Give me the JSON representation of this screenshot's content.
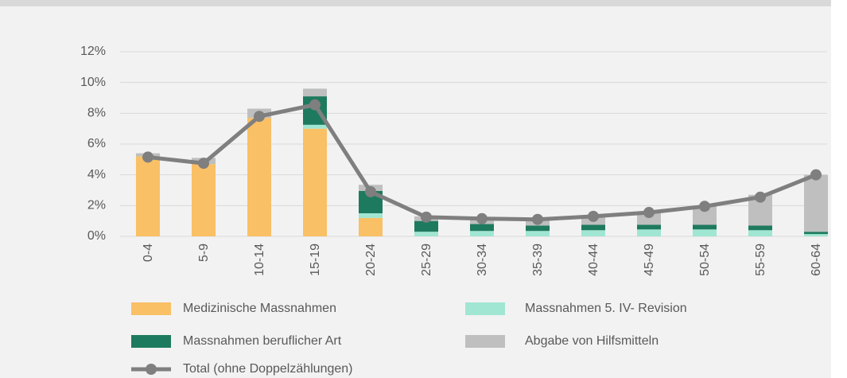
{
  "chart_data": {
    "type": "bar",
    "stacked": true,
    "categories": [
      "0-4",
      "5-9",
      "10-14",
      "15-19",
      "20-24",
      "25-29",
      "30-34",
      "35-39",
      "40-44",
      "45-49",
      "50-54",
      "55-59",
      "60-64"
    ],
    "series": [
      {
        "name": "Medizinische Massnahmen",
        "color": "#f9c066",
        "values": [
          5.2,
          4.7,
          7.7,
          7.0,
          1.2,
          0,
          0,
          0,
          0,
          0,
          0,
          0,
          0
        ]
      },
      {
        "name": "Massnahmen 5. IV- Revision",
        "color": "#a0e6d2",
        "values": [
          0,
          0,
          0,
          0.25,
          0.3,
          0.3,
          0.35,
          0.35,
          0.4,
          0.45,
          0.45,
          0.4,
          0.15
        ]
      },
      {
        "name": "Massnahmen beruflicher Art",
        "color": "#1e7a5e",
        "values": [
          0,
          0,
          0,
          1.85,
          1.45,
          0.7,
          0.45,
          0.35,
          0.35,
          0.3,
          0.3,
          0.3,
          0.15
        ]
      },
      {
        "name": "Abgabe von Hilfsmitteln",
        "color": "#bfbfbf",
        "values": [
          0.2,
          0.4,
          0.6,
          0.5,
          0.4,
          0.3,
          0.3,
          0.4,
          0.5,
          0.8,
          1.2,
          2.0,
          3.7
        ]
      },
      {
        "name": "Total (ohne Doppelzählungen)",
        "color": "#7f7f7f",
        "type": "line",
        "values": [
          5.15,
          4.75,
          7.8,
          8.55,
          2.9,
          1.25,
          1.15,
          1.1,
          1.3,
          1.55,
          1.95,
          2.55,
          4.0
        ]
      }
    ],
    "ylim": [
      0,
      12
    ],
    "yticks": [
      {
        "value": 0,
        "label": "0%"
      },
      {
        "value": 2,
        "label": "2%"
      },
      {
        "value": 4,
        "label": "4%"
      },
      {
        "value": 6,
        "label": "6%"
      },
      {
        "value": 8,
        "label": "8%"
      },
      {
        "value": 10,
        "label": "10%"
      },
      {
        "value": 12,
        "label": "12%"
      }
    ],
    "grid": true
  }
}
